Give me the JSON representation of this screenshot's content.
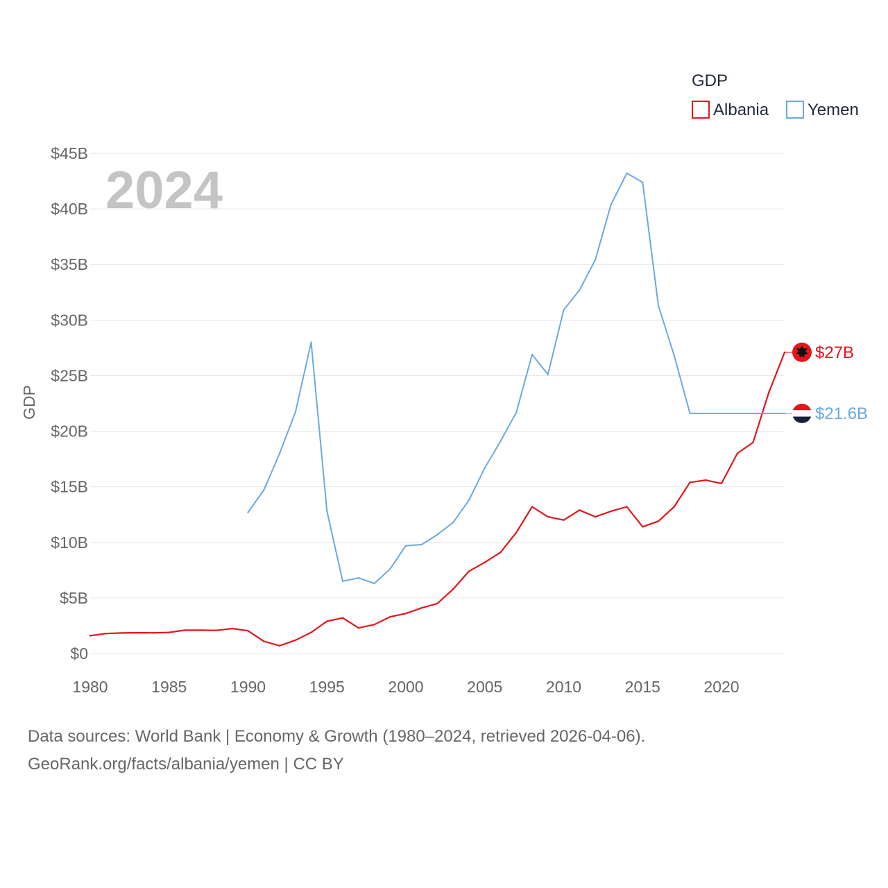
{
  "chart_data": {
    "type": "line",
    "title": "",
    "ylabel": "GDP",
    "xlabel": "",
    "year_label": "2024",
    "legend_title": "GDP",
    "legend_position": "top-right",
    "xlim": [
      1980,
      2024
    ],
    "ylim": [
      0,
      45
    ],
    "x_ticks": [
      1980,
      1985,
      1990,
      1995,
      2000,
      2005,
      2010,
      2015,
      2020
    ],
    "x_tick_labels": [
      "1980",
      "1985",
      "1990",
      "1995",
      "2000",
      "2005",
      "2010",
      "2015",
      "2020"
    ],
    "y_ticks": [
      0,
      5,
      10,
      15,
      20,
      25,
      30,
      35,
      40,
      45
    ],
    "y_tick_labels": [
      "$0",
      "$5B",
      "$10B",
      "$15B",
      "$20B",
      "$25B",
      "$30B",
      "$35B",
      "$40B",
      "$45B"
    ],
    "units": "billions USD",
    "series": [
      {
        "name": "Albania",
        "color": "#e3161b",
        "end_label": "$27B",
        "end_value": 27.1,
        "x": [
          1980,
          1981,
          1982,
          1983,
          1984,
          1985,
          1986,
          1987,
          1988,
          1989,
          1990,
          1991,
          1992,
          1993,
          1994,
          1995,
          1996,
          1997,
          1998,
          1999,
          2000,
          2001,
          2002,
          2003,
          2004,
          2005,
          2006,
          2007,
          2008,
          2009,
          2010,
          2011,
          2012,
          2013,
          2014,
          2015,
          2016,
          2017,
          2018,
          2019,
          2020,
          2021,
          2022,
          2023,
          2024
        ],
        "values": [
          1.6,
          1.8,
          1.85,
          1.87,
          1.86,
          1.9,
          2.1,
          2.1,
          2.08,
          2.25,
          2.05,
          1.1,
          0.7,
          1.2,
          1.9,
          2.9,
          3.2,
          2.3,
          2.6,
          3.3,
          3.6,
          4.1,
          4.5,
          5.8,
          7.4,
          8.2,
          9.1,
          10.9,
          13.2,
          12.3,
          12.0,
          12.9,
          12.3,
          12.8,
          13.2,
          11.4,
          11.9,
          13.2,
          15.4,
          15.6,
          15.3,
          18.0,
          19.0,
          23.5,
          27.1
        ]
      },
      {
        "name": "Yemen",
        "color": "#6aa9e0",
        "end_label": "$21.6B",
        "end_value": 21.6,
        "x": [
          1990,
          1991,
          1992,
          1993,
          1994,
          1995,
          1996,
          1997,
          1998,
          1999,
          2000,
          2001,
          2002,
          2003,
          2004,
          2005,
          2006,
          2007,
          2008,
          2009,
          2010,
          2011,
          2012,
          2013,
          2014,
          2015,
          2016,
          2017,
          2018,
          2024
        ],
        "values": [
          12.7,
          14.7,
          18.0,
          21.7,
          28.0,
          12.8,
          6.5,
          6.8,
          6.3,
          7.6,
          9.7,
          9.8,
          10.7,
          11.8,
          13.8,
          16.7,
          19.1,
          21.7,
          26.9,
          25.1,
          30.9,
          32.7,
          35.4,
          40.4,
          43.2,
          42.4,
          31.3,
          26.8,
          21.6,
          21.6
        ]
      }
    ]
  },
  "footer": {
    "line1": "Data sources: World Bank | Economy & Growth (1980–2024, retrieved 2026-04-06).",
    "line2": "GeoRank.org/facts/albania/yemen | CC BY"
  },
  "icons": {
    "albania_flag": "albania-flag-icon",
    "yemen_flag": "yemen-flag-icon"
  }
}
